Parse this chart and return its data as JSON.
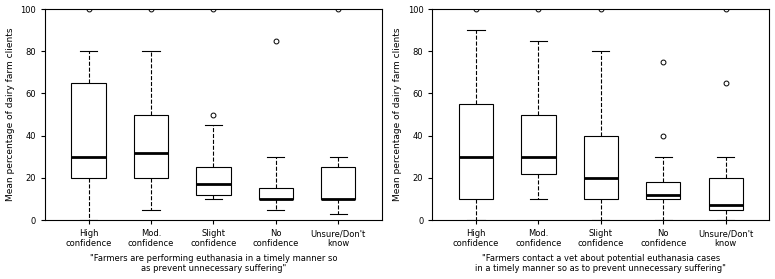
{
  "left_chart": {
    "title": "\"Farmers are performing euthanasia in a timely manner so\nas prevent unnecessary suffering\"",
    "ylabel": "Mean percentage of dairy farm clients",
    "categories": [
      "High confidence",
      "Mod. confidence",
      "Slight confidence",
      "No confidence",
      "Unsure/Don't know"
    ],
    "boxes": [
      {
        "whislo": 0,
        "q1": 20,
        "med": 30,
        "q3": 65,
        "whishi": 80,
        "fliers": [
          100
        ]
      },
      {
        "whislo": 5,
        "q1": 20,
        "med": 32,
        "q3": 50,
        "whishi": 80,
        "fliers": [
          100
        ]
      },
      {
        "whislo": 10,
        "q1": 12,
        "med": 17,
        "q3": 25,
        "whishi": 45,
        "fliers": [
          50,
          100
        ]
      },
      {
        "whislo": 5,
        "q1": 10,
        "med": 10,
        "q3": 15,
        "whishi": 30,
        "fliers": [
          85
        ]
      },
      {
        "whislo": 3,
        "q1": 10,
        "med": 10,
        "q3": 25,
        "whishi": 30,
        "fliers": [
          100
        ]
      }
    ]
  },
  "right_chart": {
    "title": "\"Farmers contact a vet about potential euthanasia cases\nin a timely manner so as to prevent unnecessary suffering\"",
    "ylabel": "Mean percentage of dairy farm clients",
    "categories": [
      "High confidence",
      "Mod. confidence",
      "Slight confidence",
      "No confidence",
      "Unsure/Don't know"
    ],
    "boxes": [
      {
        "whislo": 0,
        "q1": 10,
        "med": 30,
        "q3": 55,
        "whishi": 90,
        "fliers": [
          100
        ]
      },
      {
        "whislo": 10,
        "q1": 22,
        "med": 30,
        "q3": 50,
        "whishi": 85,
        "fliers": [
          100
        ]
      },
      {
        "whislo": 0,
        "q1": 10,
        "med": 20,
        "q3": 40,
        "whishi": 80,
        "fliers": [
          100
        ]
      },
      {
        "whislo": 0,
        "q1": 10,
        "med": 12,
        "q3": 18,
        "whishi": 30,
        "fliers": [
          40,
          75
        ]
      },
      {
        "whislo": 0,
        "q1": 5,
        "med": 7,
        "q3": 20,
        "whishi": 30,
        "fliers": [
          65,
          100
        ]
      }
    ]
  },
  "ylim": [
    0,
    100
  ],
  "yticks": [
    0,
    20,
    40,
    60,
    80,
    100
  ],
  "box_color": "white",
  "median_color": "black",
  "whisker_color": "black",
  "flier_marker": "o",
  "flier_color": "black",
  "background_color": "white",
  "fontsize_labels": 6.0,
  "fontsize_ylabel": 6.5,
  "fontsize_title": 6.0
}
